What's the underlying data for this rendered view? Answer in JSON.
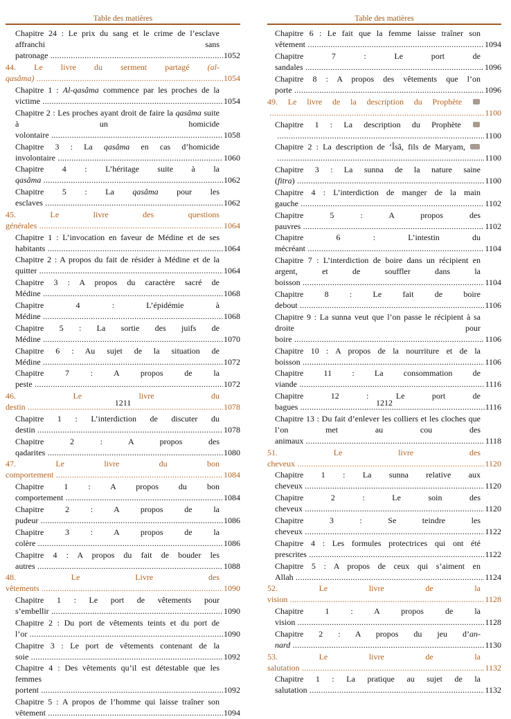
{
  "pages": [
    {
      "header": "Table des matières",
      "folio": "1211",
      "entries": [
        {
          "type": "ch",
          "parts": [
            [
              "Chapitre 24 : Le prix du sang et le crime de l’esclave affranchi sans patronage"
            ]
          ],
          "page": "1052"
        },
        {
          "type": "book",
          "parts": [
            [
              "44. Le livre du serment partagé "
            ],
            [
              "(al-qasâma)",
              "i"
            ]
          ],
          "page": "1054"
        },
        {
          "type": "ch",
          "parts": [
            [
              "Chapitre 1 : "
            ],
            [
              "Al-qasâma",
              "i"
            ],
            [
              " commence par les proches de la victime"
            ]
          ],
          "page": "1054"
        },
        {
          "type": "ch",
          "parts": [
            [
              "Chapitre 2 : Les proches ayant droit de faire la "
            ],
            [
              "qasâma",
              "i"
            ],
            [
              " suite à un homicide volontaire"
            ]
          ],
          "page": "1058"
        },
        {
          "type": "ch",
          "parts": [
            [
              "Chapitre 3 : La "
            ],
            [
              "qasâma",
              "i"
            ],
            [
              " en cas d’homicide involontaire"
            ]
          ],
          "page": "1060"
        },
        {
          "type": "ch",
          "parts": [
            [
              "Chapitre 4 : L’héritage suite à la "
            ],
            [
              "qasâma",
              "i"
            ]
          ],
          "page": "1062"
        },
        {
          "type": "ch",
          "parts": [
            [
              "Chapitre 5 : La "
            ],
            [
              "qasâma",
              "i"
            ],
            [
              " pour les esclaves"
            ]
          ],
          "page": "1062"
        },
        {
          "type": "book",
          "parts": [
            [
              "45. Le livre des questions générales"
            ]
          ],
          "page": "1064"
        },
        {
          "type": "ch",
          "parts": [
            [
              "Chapitre 1 : L’invocation en faveur de Médine et de ses habitants"
            ]
          ],
          "page": "1064"
        },
        {
          "type": "ch",
          "parts": [
            [
              "Chapitre 2 : A propos du fait de résider à Médine et de la quitter"
            ]
          ],
          "page": "1064"
        },
        {
          "type": "ch",
          "parts": [
            [
              "Chapitre 3 : A propos du caractère sacré de Médine"
            ]
          ],
          "page": "1068"
        },
        {
          "type": "ch",
          "parts": [
            [
              "Chapitre 4 : L’épidémie à Médine"
            ]
          ],
          "page": "1068"
        },
        {
          "type": "ch",
          "parts": [
            [
              "Chapitre 5 : La sortie des juifs de Médine"
            ]
          ],
          "page": "1070"
        },
        {
          "type": "ch",
          "parts": [
            [
              "Chapitre 6 : Au sujet de la situation de Médine"
            ]
          ],
          "page": "1072"
        },
        {
          "type": "ch",
          "parts": [
            [
              "Chapitre 7 : A propos de la peste"
            ]
          ],
          "page": "1072"
        },
        {
          "type": "book",
          "parts": [
            [
              "46. Le livre du destin"
            ]
          ],
          "page": "1078"
        },
        {
          "type": "ch",
          "parts": [
            [
              "Chapitre 1 : L’interdiction de discuter du destin"
            ]
          ],
          "page": "1078"
        },
        {
          "type": "ch",
          "parts": [
            [
              "Chapitre 2 : A propos des qadarites"
            ]
          ],
          "page": "1080"
        },
        {
          "type": "book",
          "parts": [
            [
              "47. Le livre du bon comportement"
            ]
          ],
          "page": "1084"
        },
        {
          "type": "ch",
          "parts": [
            [
              "Chapitre 1 : A propos du bon comportement"
            ]
          ],
          "page": "1084"
        },
        {
          "type": "ch",
          "parts": [
            [
              "Chapitre 2 : A propos de la pudeur"
            ]
          ],
          "page": "1086"
        },
        {
          "type": "ch",
          "parts": [
            [
              "Chapitre 3 : A propos de la colère"
            ]
          ],
          "page": "1086"
        },
        {
          "type": "ch",
          "parts": [
            [
              "Chapitre 4 : A propos du fait de bouder les autres"
            ]
          ],
          "page": "1088"
        },
        {
          "type": "book",
          "parts": [
            [
              "48. Le Livre des vêtements"
            ]
          ],
          "page": "1090"
        },
        {
          "type": "ch",
          "parts": [
            [
              "Chapitre 1 : Le port de vêtements pour s’embellir"
            ]
          ],
          "page": "1090"
        },
        {
          "type": "ch",
          "parts": [
            [
              "Chapitre 2 : Du port de vêtements teints et du port de l’or"
            ]
          ],
          "page": "1090"
        },
        {
          "type": "ch",
          "parts": [
            [
              "Chapitre 3 : Le port de vêtements contenant de la soie"
            ]
          ],
          "page": "1092"
        },
        {
          "type": "ch",
          "parts": [
            [
              "Chapitre 4 : Des vêtements qu’il est détestable que les femmes portent"
            ]
          ],
          "page": "1092"
        },
        {
          "type": "ch",
          "parts": [
            [
              "Chapitre 5 : A propos de l’homme qui laisse traîner son vêtement"
            ]
          ],
          "page": "1094"
        }
      ]
    },
    {
      "header": "Table des matières",
      "folio": "1212",
      "entries": [
        {
          "type": "ch",
          "parts": [
            [
              "Chapitre 6 : Le fait que la femme laisse traîner son vêtement"
            ]
          ],
          "page": "1094"
        },
        {
          "type": "ch",
          "parts": [
            [
              "Chapitre 7 : Le port de sandales"
            ]
          ],
          "page": "1096"
        },
        {
          "type": "ch",
          "parts": [
            [
              "Chapitre 8 : A propos des vêtements que l’on porte"
            ]
          ],
          "page": "1096"
        },
        {
          "type": "book",
          "parts": [
            [
              "49. Le livre de la description du Prophète "
            ],
            [
              "",
              "sym"
            ]
          ],
          "page": "1100"
        },
        {
          "type": "ch",
          "parts": [
            [
              "Chapitre 1 : La description du Prophète "
            ],
            [
              "",
              "sym"
            ]
          ],
          "page": "1100"
        },
        {
          "type": "ch",
          "parts": [
            [
              "Chapitre 2 : La description de ‘Îsâ, fils de Maryam, "
            ],
            [
              "",
              "symw"
            ]
          ],
          "page": "1100"
        },
        {
          "type": "ch",
          "parts": [
            [
              "Chapitre 3 : La sunna de la nature saine ("
            ],
            [
              "fitra",
              "i"
            ],
            [
              ")"
            ]
          ],
          "page": "1100"
        },
        {
          "type": "ch",
          "parts": [
            [
              "Chapitre 4 : L’interdiction de manger de la main gauche"
            ]
          ],
          "page": "1102"
        },
        {
          "type": "ch",
          "parts": [
            [
              "Chapitre 5 : A propos des pauvres"
            ]
          ],
          "page": "1102"
        },
        {
          "type": "ch",
          "parts": [
            [
              "Chapitre 6 : L’intestin du mécréant"
            ]
          ],
          "page": "1104"
        },
        {
          "type": "ch",
          "parts": [
            [
              "Chapitre 7 : L’interdiction de boire dans un récipient en argent, et de souffler dans la boisson"
            ]
          ],
          "page": "1104"
        },
        {
          "type": "ch",
          "parts": [
            [
              "Chapitre 8 : Le fait de boire debout"
            ]
          ],
          "page": "1106"
        },
        {
          "type": "ch",
          "parts": [
            [
              "Chapitre 9 : La sunna veut que l’on passe le récipient à sa droite pour boire"
            ]
          ],
          "page": "1106"
        },
        {
          "type": "ch",
          "parts": [
            [
              "Chapitre 10 : A propos de la nourriture et de la boisson"
            ]
          ],
          "page": "1106"
        },
        {
          "type": "ch",
          "parts": [
            [
              "Chapitre 11 : La consommation de viande"
            ]
          ],
          "page": "1116"
        },
        {
          "type": "ch",
          "parts": [
            [
              "Chapitre 12 : Le port de bagues"
            ]
          ],
          "page": "1116"
        },
        {
          "type": "ch",
          "parts": [
            [
              "Chapitre 13 : Du fait d’enlever les colliers et les cloches que l’on met au cou des animaux"
            ]
          ],
          "page": "1118"
        },
        {
          "type": "book",
          "parts": [
            [
              "51. Le livre des cheveux"
            ]
          ],
          "page": "1120"
        },
        {
          "type": "ch",
          "parts": [
            [
              "Chapitre 1 : La sunna relative aux cheveux"
            ]
          ],
          "page": "1120"
        },
        {
          "type": "ch",
          "parts": [
            [
              "Chapitre 2 : Le soin des cheveux"
            ]
          ],
          "page": "1120"
        },
        {
          "type": "ch",
          "parts": [
            [
              "Chapitre 3 : Se teindre les cheveux"
            ]
          ],
          "page": "1122"
        },
        {
          "type": "ch",
          "parts": [
            [
              "Chapitre 4 : Les formules protectrices qui ont été prescrites"
            ]
          ],
          "page": "1122"
        },
        {
          "type": "ch",
          "parts": [
            [
              "Chapitre 5 : A propos de ceux qui s’aiment en Allah"
            ]
          ],
          "page": "1124"
        },
        {
          "type": "book",
          "parts": [
            [
              "52. Le livre de la vision"
            ]
          ],
          "page": "1128"
        },
        {
          "type": "ch",
          "parts": [
            [
              "Chapitre 1 : A propos de la vision"
            ]
          ],
          "page": "1128"
        },
        {
          "type": "ch",
          "parts": [
            [
              "Chapitre 2 : A propos du jeu d’"
            ],
            [
              "an-nard",
              "i"
            ]
          ],
          "page": "1130"
        },
        {
          "type": "book",
          "parts": [
            [
              "53. Le livre de la salutation"
            ]
          ],
          "page": "1132"
        },
        {
          "type": "ch",
          "parts": [
            [
              "Chapitre 1 : La pratique au sujet de la salutation"
            ]
          ],
          "page": "1132"
        }
      ]
    }
  ],
  "colors": {
    "heading": "#b4621d",
    "rule": "#a0581c",
    "text": "#111111"
  }
}
